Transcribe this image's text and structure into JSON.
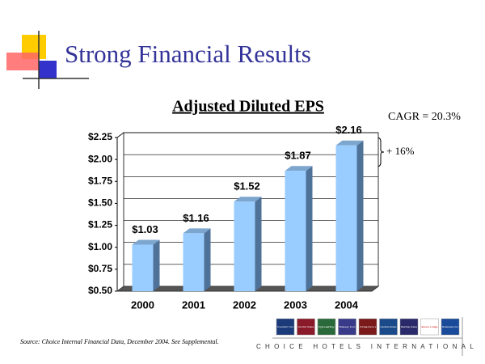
{
  "header": {
    "title": "Strong Financial Results"
  },
  "chart_data": {
    "type": "bar",
    "title": "Adjusted Diluted EPS",
    "categories": [
      "2000",
      "2001",
      "2002",
      "2003",
      "2004"
    ],
    "values": [
      1.03,
      1.16,
      1.52,
      1.87,
      2.16
    ],
    "value_labels": [
      "$1.03",
      "$1.16",
      "$1.52",
      "$1.87",
      "$2.16"
    ],
    "color": "#99ccff",
    "ylim": [
      0.5,
      2.25
    ],
    "yticks": [
      {
        "value": 0.5,
        "label": "$0.50"
      },
      {
        "value": 0.75,
        "label": "$0.75"
      },
      {
        "value": 1.0,
        "label": "$1.00"
      },
      {
        "value": 1.25,
        "label": "$1.25"
      },
      {
        "value": 1.5,
        "label": "$1.50"
      },
      {
        "value": 1.75,
        "label": "$1.75"
      },
      {
        "value": 2.0,
        "label": "$2.00"
      },
      {
        "value": 2.25,
        "label": "$2.25"
      }
    ],
    "grid": true,
    "annotations": [
      "CAGR = 20.3%",
      "+ 16%"
    ]
  },
  "footer": {
    "source": "Source: Choice Internal Financial Data, December 2004. See Supplemental.",
    "company": "CHOICE HOTELS INTERNATIONAL",
    "brands": [
      "Comfort Inn",
      "Comfort Suites",
      "Quality",
      "Sleep Inn",
      "Clarion",
      "Cambria Suites",
      "MainStay Suites",
      "Econo Lodge",
      "Rodeway Inn"
    ]
  }
}
